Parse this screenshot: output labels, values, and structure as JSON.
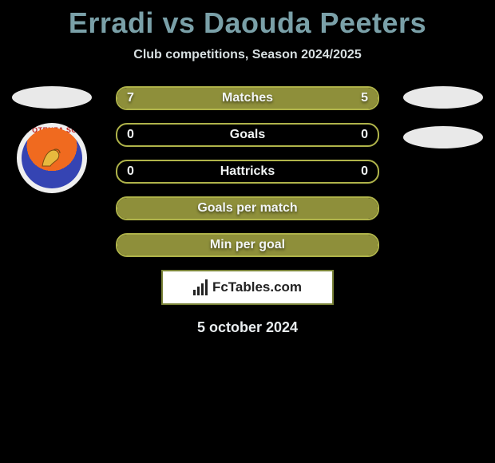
{
  "title": "Erradi vs Daouda Peeters",
  "subtitle": "Club competitions, Season 2024/2025",
  "date": "5 october 2024",
  "logo_text": "FcTables.com",
  "colors": {
    "background": "#000000",
    "title": "#7aa0a8",
    "text_light": "#e8ecee",
    "bar_border": "#afb34a",
    "bar_fill": "#8e8f3a",
    "ellipse": "#e9e9e9"
  },
  "left": {
    "ellipse_color": "#e9e9e9",
    "badge_text": "POTENZA SC"
  },
  "right": {
    "ellipse1_color": "#e9e9e9",
    "ellipse2_color": "#e9e9e9"
  },
  "bars": [
    {
      "label": "Matches",
      "left_value": "7",
      "right_value": "5",
      "left_pct": 58,
      "right_pct": 42,
      "fill_left_color": "#8e8f3a",
      "fill_right_color": "#8e8f3a",
      "border_color": "#afb34a"
    },
    {
      "label": "Goals",
      "left_value": "0",
      "right_value": "0",
      "left_pct": 0,
      "right_pct": 0,
      "fill_left_color": "#8e8f3a",
      "fill_right_color": "#8e8f3a",
      "border_color": "#afb34a"
    },
    {
      "label": "Hattricks",
      "left_value": "0",
      "right_value": "0",
      "left_pct": 0,
      "right_pct": 0,
      "fill_left_color": "#8e8f3a",
      "fill_right_color": "#8e8f3a",
      "border_color": "#afb34a"
    },
    {
      "label": "Goals per match",
      "left_value": "",
      "right_value": "",
      "full_fill": true,
      "fill_color": "#8e8f3a",
      "border_color": "#afb34a"
    },
    {
      "label": "Min per goal",
      "left_value": "",
      "right_value": "",
      "full_fill": true,
      "fill_color": "#8e8f3a",
      "border_color": "#afb34a"
    }
  ]
}
